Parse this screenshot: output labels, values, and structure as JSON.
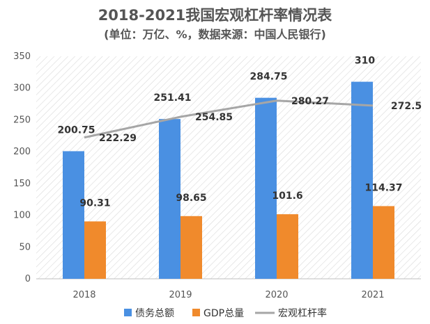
{
  "chart_data": {
    "type": "bar",
    "title": "2018-2021我国宏观杠杆率情况表",
    "subtitle": "(单位：万亿、%，数据来源：中国人民银行)",
    "categories": [
      "2018",
      "2019",
      "2020",
      "2021"
    ],
    "ylim": [
      0,
      350
    ],
    "yticks": [
      0,
      50,
      100,
      150,
      200,
      250,
      300,
      350
    ],
    "grid": false,
    "legend_position": "bottom",
    "series": [
      {
        "name": "债务总额",
        "type": "bar",
        "color": "#4a90e2",
        "values": [
          200.75,
          251.41,
          284.75,
          310
        ]
      },
      {
        "name": "GDP总量",
        "type": "bar",
        "color": "#f08a2c",
        "values": [
          90.31,
          98.65,
          101.6,
          114.37
        ]
      },
      {
        "name": "宏观杠杆率",
        "type": "line",
        "color": "#a6a6a6",
        "values": [
          222.29,
          254.85,
          280.27,
          272.5
        ]
      }
    ],
    "data_labels": {
      "debt": [
        "200.75",
        "251.41",
        "284.75",
        "310"
      ],
      "gdp": [
        "90.31",
        "98.65",
        "101.6",
        "114.37"
      ],
      "leverage": [
        "222.29",
        "254.85",
        "280.27",
        "272.5"
      ]
    },
    "legend": [
      "债务总额",
      "GDP总量",
      "宏观杠杆率"
    ]
  }
}
